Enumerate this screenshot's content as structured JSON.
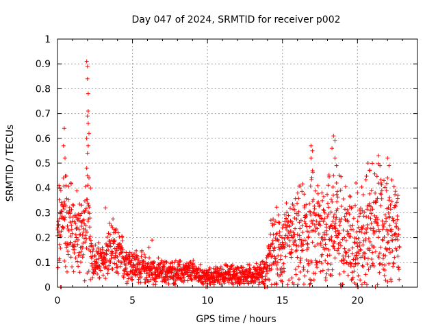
{
  "chart_data": {
    "type": "scatter",
    "title": "Day 047 of 2024, SRMTID for receiver p002",
    "xlabel": "GPS time / hours",
    "ylabel": "SRMTID / TECUs",
    "xlim": [
      0,
      24
    ],
    "ylim": [
      0,
      1
    ],
    "grid": true,
    "x_ticks": [
      "0",
      "5",
      "10",
      "15",
      "20"
    ],
    "y_ticks": [
      "0",
      "0.1",
      "0.2",
      "0.3",
      "0.4",
      "0.5",
      "0.6",
      "0.7",
      "0.8",
      "0.9",
      "1"
    ],
    "marker": "+",
    "color": "#ff0000",
    "series": [
      {
        "name": "SRMTID",
        "trend": [
          {
            "x": 0.0,
            "y": 0.18
          },
          {
            "x": 0.4,
            "y": 0.3
          },
          {
            "x": 0.8,
            "y": 0.25
          },
          {
            "x": 1.5,
            "y": 0.2
          },
          {
            "x": 2.0,
            "y": 0.25
          },
          {
            "x": 2.4,
            "y": 0.1
          },
          {
            "x": 3.0,
            "y": 0.1
          },
          {
            "x": 3.5,
            "y": 0.15
          },
          {
            "x": 4.0,
            "y": 0.13
          },
          {
            "x": 5.0,
            "y": 0.09
          },
          {
            "x": 6.0,
            "y": 0.07
          },
          {
            "x": 7.0,
            "y": 0.06
          },
          {
            "x": 8.0,
            "y": 0.06
          },
          {
            "x": 9.0,
            "y": 0.06
          },
          {
            "x": 10.0,
            "y": 0.04
          },
          {
            "x": 11.0,
            "y": 0.05
          },
          {
            "x": 12.0,
            "y": 0.05
          },
          {
            "x": 13.0,
            "y": 0.05
          },
          {
            "x": 13.8,
            "y": 0.06
          },
          {
            "x": 14.3,
            "y": 0.14
          },
          {
            "x": 15.0,
            "y": 0.16
          },
          {
            "x": 16.0,
            "y": 0.19
          },
          {
            "x": 17.0,
            "y": 0.22
          },
          {
            "x": 18.0,
            "y": 0.24
          },
          {
            "x": 19.0,
            "y": 0.22
          },
          {
            "x": 20.0,
            "y": 0.18
          },
          {
            "x": 21.0,
            "y": 0.25
          },
          {
            "x": 22.0,
            "y": 0.22
          },
          {
            "x": 22.8,
            "y": 0.2
          }
        ],
        "bursts": [
          {
            "x": 0.1,
            "y": 0.41
          },
          {
            "x": 0.4,
            "y": 0.44
          },
          {
            "x": 0.45,
            "y": 0.64
          },
          {
            "x": 0.4,
            "y": 0.57
          },
          {
            "x": 0.5,
            "y": 0.52
          },
          {
            "x": 0.9,
            "y": 0.42
          },
          {
            "x": 1.95,
            "y": 0.91
          },
          {
            "x": 2.0,
            "y": 0.89
          },
          {
            "x": 2.0,
            "y": 0.84
          },
          {
            "x": 2.05,
            "y": 0.78
          },
          {
            "x": 2.05,
            "y": 0.71
          },
          {
            "x": 2.0,
            "y": 0.69
          },
          {
            "x": 2.05,
            "y": 0.66
          },
          {
            "x": 2.1,
            "y": 0.62
          },
          {
            "x": 1.95,
            "y": 0.6
          },
          {
            "x": 2.05,
            "y": 0.57
          },
          {
            "x": 2.0,
            "y": 0.54
          },
          {
            "x": 1.95,
            "y": 0.48
          },
          {
            "x": 2.1,
            "y": 0.44
          },
          {
            "x": 2.2,
            "y": 0.4
          },
          {
            "x": 3.2,
            "y": 0.32
          },
          {
            "x": 6.1,
            "y": 0.16
          },
          {
            "x": 6.3,
            "y": 0.19
          },
          {
            "x": 16.9,
            "y": 0.57
          },
          {
            "x": 17.0,
            "y": 0.55
          },
          {
            "x": 16.9,
            "y": 0.52
          },
          {
            "x": 17.0,
            "y": 0.47
          },
          {
            "x": 18.4,
            "y": 0.61
          },
          {
            "x": 18.5,
            "y": 0.59
          },
          {
            "x": 18.3,
            "y": 0.56
          },
          {
            "x": 18.5,
            "y": 0.52
          },
          {
            "x": 18.6,
            "y": 0.49
          },
          {
            "x": 18.4,
            "y": 0.45
          },
          {
            "x": 18.6,
            "y": 0.42
          },
          {
            "x": 19.9,
            "y": 0.42
          },
          {
            "x": 20.0,
            "y": 0.38
          },
          {
            "x": 20.7,
            "y": 0.5
          },
          {
            "x": 20.8,
            "y": 0.47
          },
          {
            "x": 21.4,
            "y": 0.53
          },
          {
            "x": 21.5,
            "y": 0.49
          },
          {
            "x": 22.0,
            "y": 0.52
          },
          {
            "x": 22.1,
            "y": 0.49
          },
          {
            "x": 22.0,
            "y": 0.44
          },
          {
            "x": 22.7,
            "y": 0.37
          },
          {
            "x": 22.5,
            "y": 0.33
          }
        ],
        "zero_markers": [
          0.2,
          0.25,
          9.9,
          10.0,
          13.8,
          13.9,
          14.0,
          18.9,
          20.0,
          20.05,
          21.2
        ]
      }
    ]
  }
}
